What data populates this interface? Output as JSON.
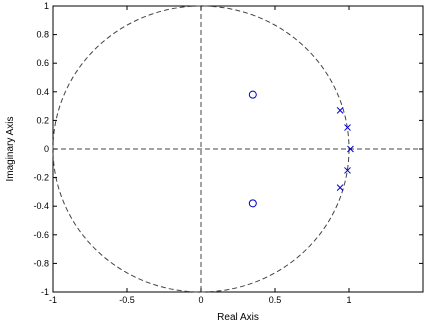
{
  "chart_data": {
    "type": "scatter",
    "title": "",
    "xlabel": "Real Axis",
    "ylabel": "Imaginary Axis",
    "xlim": [
      -1,
      1.5
    ],
    "ylim": [
      -1,
      1
    ],
    "x_ticks": [
      {
        "value": -1,
        "label": "-1"
      },
      {
        "value": -0.5,
        "label": "-0.5"
      },
      {
        "value": 0,
        "label": "0"
      },
      {
        "value": 0.5,
        "label": "0.5"
      },
      {
        "value": 1,
        "label": "1"
      }
    ],
    "y_ticks": [
      {
        "value": 1,
        "label": "1"
      },
      {
        "value": 0.8,
        "label": "0.8"
      },
      {
        "value": 0.6,
        "label": "0.6"
      },
      {
        "value": 0.4,
        "label": "0.4"
      },
      {
        "value": 0.2,
        "label": "0.2"
      },
      {
        "value": 0,
        "label": "0"
      },
      {
        "value": -0.2,
        "label": "-0.2"
      },
      {
        "value": -0.4,
        "label": "-0.4"
      },
      {
        "value": -0.6,
        "label": "-0.6"
      },
      {
        "value": -0.8,
        "label": "-0.8"
      },
      {
        "value": -1,
        "label": "-1"
      }
    ],
    "series": [
      {
        "marker": "o",
        "color": "#0000cc",
        "points": [
          {
            "x": 0.35,
            "y": 0.38
          },
          {
            "x": 0.35,
            "y": -0.38
          }
        ]
      },
      {
        "marker": "x",
        "color": "#0000cc",
        "points": [
          {
            "x": 0.94,
            "y": 0.27
          },
          {
            "x": 0.99,
            "y": 0.15
          },
          {
            "x": 1.01,
            "y": 0.0
          },
          {
            "x": 0.99,
            "y": -0.15
          },
          {
            "x": 0.94,
            "y": -0.27
          }
        ]
      }
    ],
    "unit_circle": true,
    "reference_lines": {
      "x0": true,
      "y0": true
    },
    "grid": false,
    "colors": {
      "axes": "#000000",
      "reference": "#444444",
      "markers": "#0000cc"
    }
  }
}
